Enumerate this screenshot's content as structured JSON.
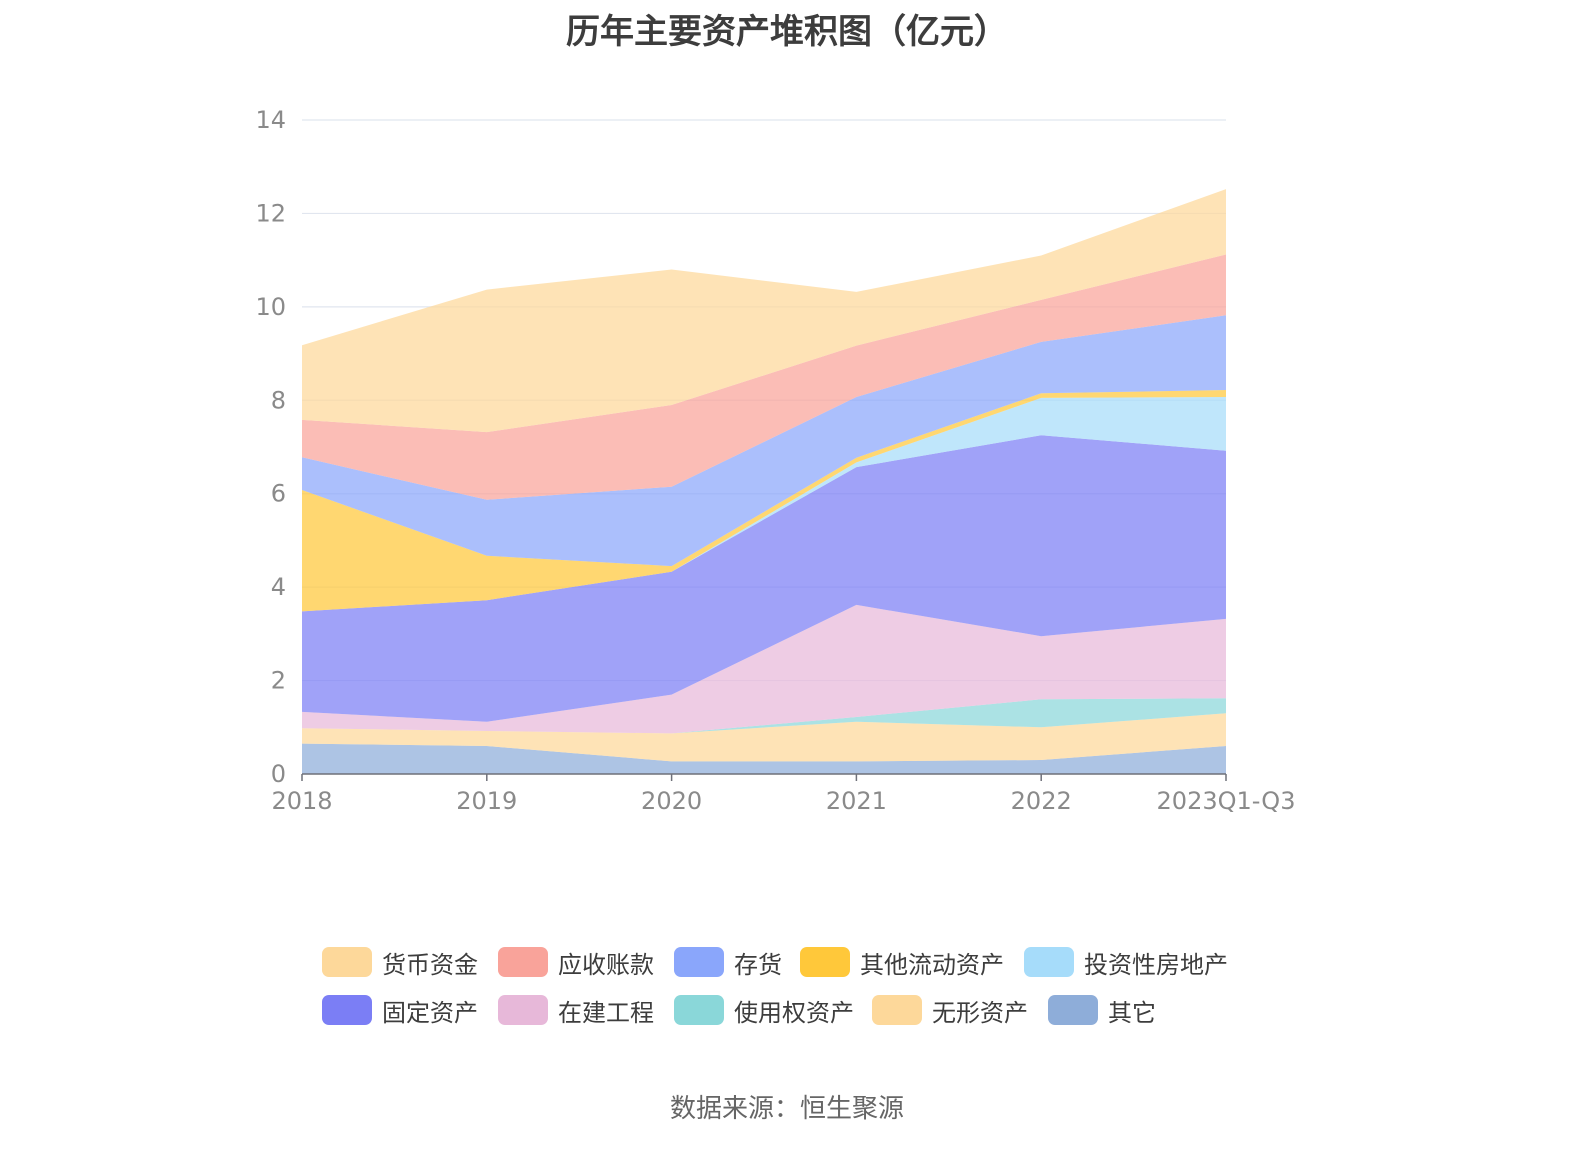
{
  "chart_data": {
    "type": "area",
    "stacked": true,
    "title": "历年主要资产堆积图（亿元）",
    "xlabel": "",
    "ylabel": "",
    "ylim": [
      0,
      14
    ],
    "yticks": [
      0,
      2,
      4,
      6,
      8,
      10,
      12,
      14
    ],
    "categories": [
      "2018",
      "2019",
      "2020",
      "2021",
      "2022",
      "2023Q1-Q3"
    ],
    "grid": true,
    "legend_position": "bottom",
    "series": [
      {
        "name": "其它",
        "color": "#8eadd9",
        "values": [
          0.65,
          0.6,
          0.27,
          0.27,
          0.3,
          0.6
        ]
      },
      {
        "name": "无形资产",
        "color": "#fdd89a",
        "values": [
          0.33,
          0.32,
          0.6,
          0.85,
          0.7,
          0.7
        ]
      },
      {
        "name": "使用权资产",
        "color": "#8ad7d9",
        "values": [
          0,
          0,
          0,
          0.1,
          0.6,
          0.32
        ]
      },
      {
        "name": "在建工程",
        "color": "#e7b8d9",
        "values": [
          0.35,
          0.2,
          0.83,
          2.4,
          1.35,
          1.7
        ]
      },
      {
        "name": "固定资产",
        "color": "#7b7ef5",
        "values": [
          2.15,
          2.6,
          2.63,
          2.95,
          4.3,
          3.6
        ]
      },
      {
        "name": "投资性房地产",
        "color": "#a6dcfa",
        "values": [
          0,
          0,
          0,
          0.1,
          0.8,
          1.15
        ]
      },
      {
        "name": "其他流动资产",
        "color": "#ffc83a",
        "values": [
          2.6,
          0.95,
          0.12,
          0.1,
          0.1,
          0.15
        ]
      },
      {
        "name": "存货",
        "color": "#8aa6fb",
        "values": [
          0.7,
          1.2,
          1.7,
          1.3,
          1.1,
          1.6
        ]
      },
      {
        "name": "应收账款",
        "color": "#f9a39a",
        "values": [
          0.8,
          1.45,
          1.75,
          1.1,
          0.9,
          1.3
        ]
      },
      {
        "name": "货币资金",
        "color": "#fdd89a",
        "values": [
          1.6,
          3.05,
          2.9,
          1.15,
          0.95,
          1.4
        ]
      }
    ]
  },
  "legend": {
    "items": [
      {
        "label": "货币资金",
        "color": "#fdd89a"
      },
      {
        "label": "应收账款",
        "color": "#f9a39a"
      },
      {
        "label": "存货",
        "color": "#8aa6fb"
      },
      {
        "label": "其他流动资产",
        "color": "#ffc83a"
      },
      {
        "label": "投资性房地产",
        "color": "#a6dcfa"
      },
      {
        "label": "固定资产",
        "color": "#7b7ef5"
      },
      {
        "label": "在建工程",
        "color": "#e7b8d9"
      },
      {
        "label": "使用权资产",
        "color": "#8ad7d9"
      },
      {
        "label": "无形资产",
        "color": "#fdd89a"
      },
      {
        "label": "其它",
        "color": "#8eadd9"
      }
    ]
  },
  "source": "数据来源：恒生聚源"
}
